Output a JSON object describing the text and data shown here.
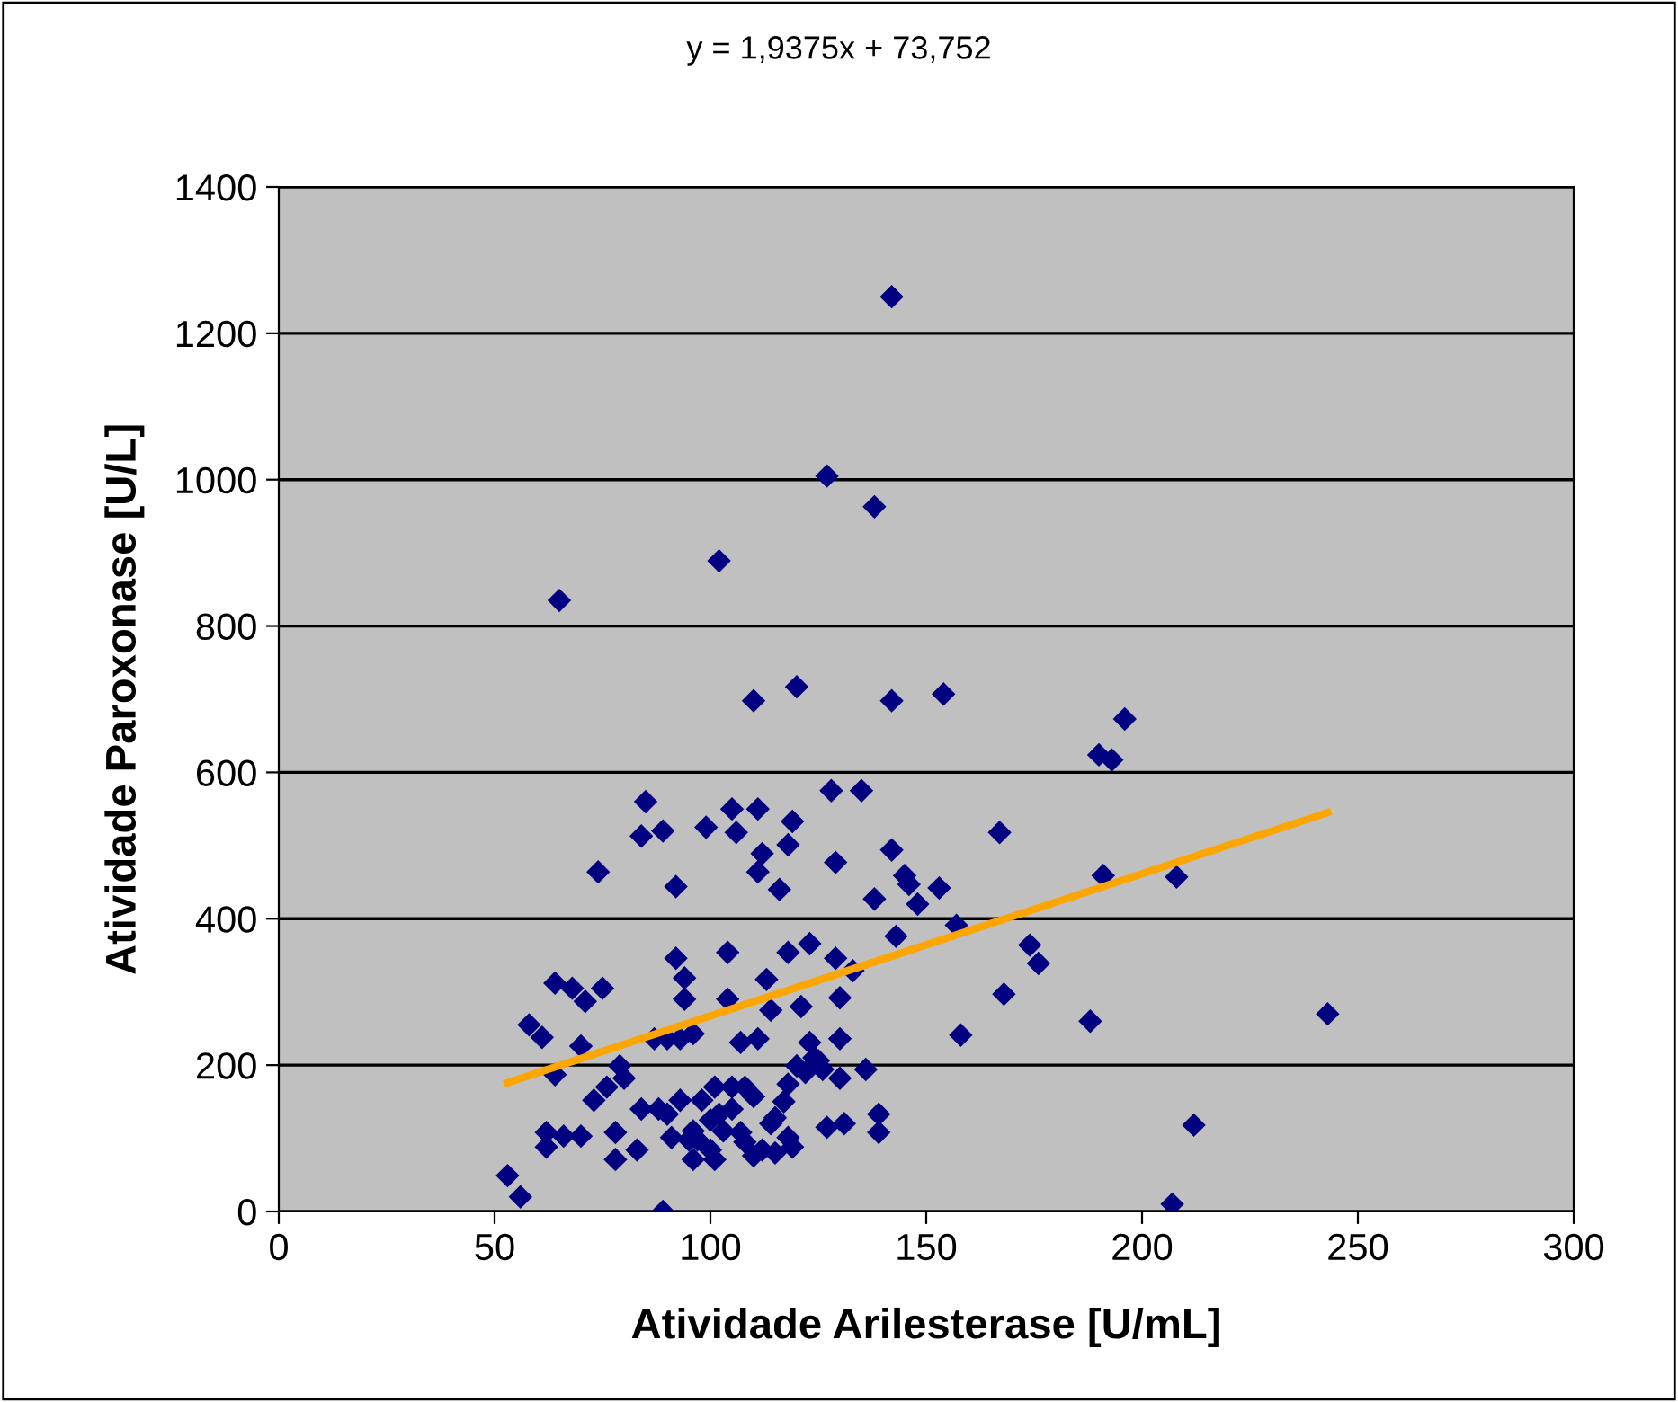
{
  "chart_data": {
    "type": "scatter",
    "xlabel": "Atividade Arilesterase [U/mL]",
    "ylabel": "Atividade Paroxonase [U/L]",
    "annotations": [
      "y = 1,9375x + 73,752"
    ],
    "xlim": [
      0,
      300
    ],
    "xticks": [
      0,
      50,
      100,
      150,
      200,
      250,
      300
    ],
    "ylim": [
      0,
      1400
    ],
    "yticks": [
      0,
      200,
      400,
      600,
      800,
      1000,
      1200,
      1400
    ],
    "grid": "y",
    "legend": false,
    "marker": "diamond",
    "series": [
      {
        "color": "#000080",
        "x": [
          53,
          56,
          64,
          58,
          61,
          64,
          62,
          62,
          66,
          70,
          68,
          71,
          70,
          75,
          74,
          65,
          73,
          76,
          78,
          78,
          79,
          80,
          83,
          84,
          84,
          85,
          88,
          87,
          89,
          90,
          89,
          91,
          90,
          93,
          92,
          92,
          93,
          94,
          94,
          96,
          95,
          96,
          97,
          98,
          99,
          100,
          101,
          102,
          102,
          101,
          104,
          104,
          105,
          105,
          106,
          107,
          107,
          108,
          110,
          111,
          111,
          110,
          110,
          111,
          112,
          114,
          113,
          115,
          116,
          118,
          119,
          118,
          118,
          118,
          119,
          120,
          120,
          121,
          123,
          123,
          125,
          126,
          127,
          127,
          128,
          129,
          129,
          130,
          130,
          130,
          131,
          133,
          135,
          136,
          138,
          138,
          139,
          139,
          142,
          142,
          142,
          143,
          145,
          146,
          148,
          153,
          154,
          157,
          158,
          167,
          168,
          174,
          176,
          188,
          190,
          193,
          191,
          196,
          207,
          208,
          212,
          243,
          105,
          108,
          112,
          114,
          117,
          122,
          124,
          115,
          103,
          100,
          96
        ],
        "values": [
          49,
          20,
          312,
          255,
          238,
          187,
          108,
          88,
          103,
          103,
          305,
          287,
          226,
          305,
          464,
          835,
          152,
          170,
          108,
          71,
          199,
          182,
          84,
          140,
          513,
          560,
          140,
          236,
          520,
          236,
          0,
          101,
          133,
          152,
          346,
          444,
          236,
          319,
          290,
          243,
          98,
          71,
          98,
          152,
          525,
          84,
          170,
          133,
          889,
          71,
          354,
          290,
          550,
          170,
          518,
          231,
          108,
          170,
          698,
          550,
          464,
          157,
          76,
          236,
          489,
          275,
          317,
          128,
          440,
          501,
          533,
          354,
          174,
          101,
          88,
          717,
          199,
          280,
          366,
          231,
          206,
          194,
          1005,
          115,
          575,
          346,
          477,
          236,
          292,
          182,
          120,
          329,
          575,
          194,
          963,
          427,
          133,
          108,
          1250,
          698,
          494,
          376,
          459,
          447,
          420,
          442,
          707,
          391,
          241,
          518,
          297,
          364,
          339,
          260,
          624,
          617,
          459,
          673,
          10,
          457,
          118,
          270,
          140,
          95,
          84,
          120,
          150,
          190,
          210,
          80,
          110,
          125,
          110
        ]
      },
      {
        "type": "line",
        "color": "#ffa500",
        "x": [
          53,
          243
        ],
        "values": [
          176,
          545
        ],
        "marker": "none",
        "line_style": "solid"
      }
    ]
  }
}
